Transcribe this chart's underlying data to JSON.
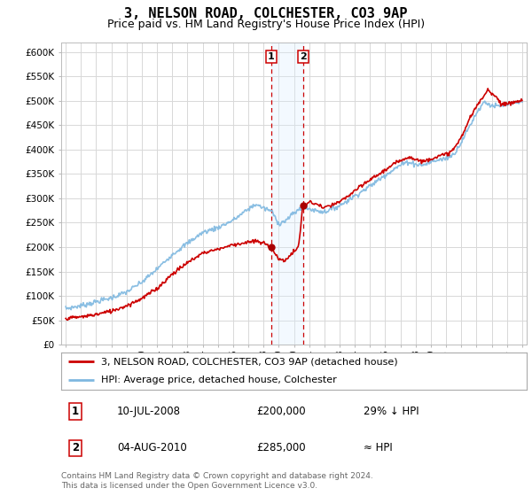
{
  "title": "3, NELSON ROAD, COLCHESTER, CO3 9AP",
  "subtitle": "Price paid vs. HM Land Registry's House Price Index (HPI)",
  "title_fontsize": 11,
  "subtitle_fontsize": 9,
  "ylabel_ticks": [
    "£0",
    "£50K",
    "£100K",
    "£150K",
    "£200K",
    "£250K",
    "£300K",
    "£350K",
    "£400K",
    "£450K",
    "£500K",
    "£550K",
    "£600K"
  ],
  "ytick_values": [
    0,
    50000,
    100000,
    150000,
    200000,
    250000,
    300000,
    350000,
    400000,
    450000,
    500000,
    550000,
    600000
  ],
  "ylim": [
    0,
    620000
  ],
  "hpi_color": "#7fb8e0",
  "price_color": "#cc0000",
  "marker_color": "#aa0000",
  "sale1_date": 2008.53,
  "sale1_price": 200000,
  "sale2_date": 2010.59,
  "sale2_price": 285000,
  "shade_color": "#daeeff",
  "vline_color": "#cc0000",
  "legend_line1": "3, NELSON ROAD, COLCHESTER, CO3 9AP (detached house)",
  "legend_line2": "HPI: Average price, detached house, Colchester",
  "table_row1_num": "1",
  "table_row1_date": "10-JUL-2008",
  "table_row1_price": "£200,000",
  "table_row1_hpi": "29% ↓ HPI",
  "table_row2_num": "2",
  "table_row2_date": "04-AUG-2010",
  "table_row2_price": "£285,000",
  "table_row2_hpi": "≈ HPI",
  "footer": "Contains HM Land Registry data © Crown copyright and database right 2024.\nThis data is licensed under the Open Government Licence v3.0.",
  "background_color": "#ffffff",
  "grid_color": "#d8d8d8"
}
